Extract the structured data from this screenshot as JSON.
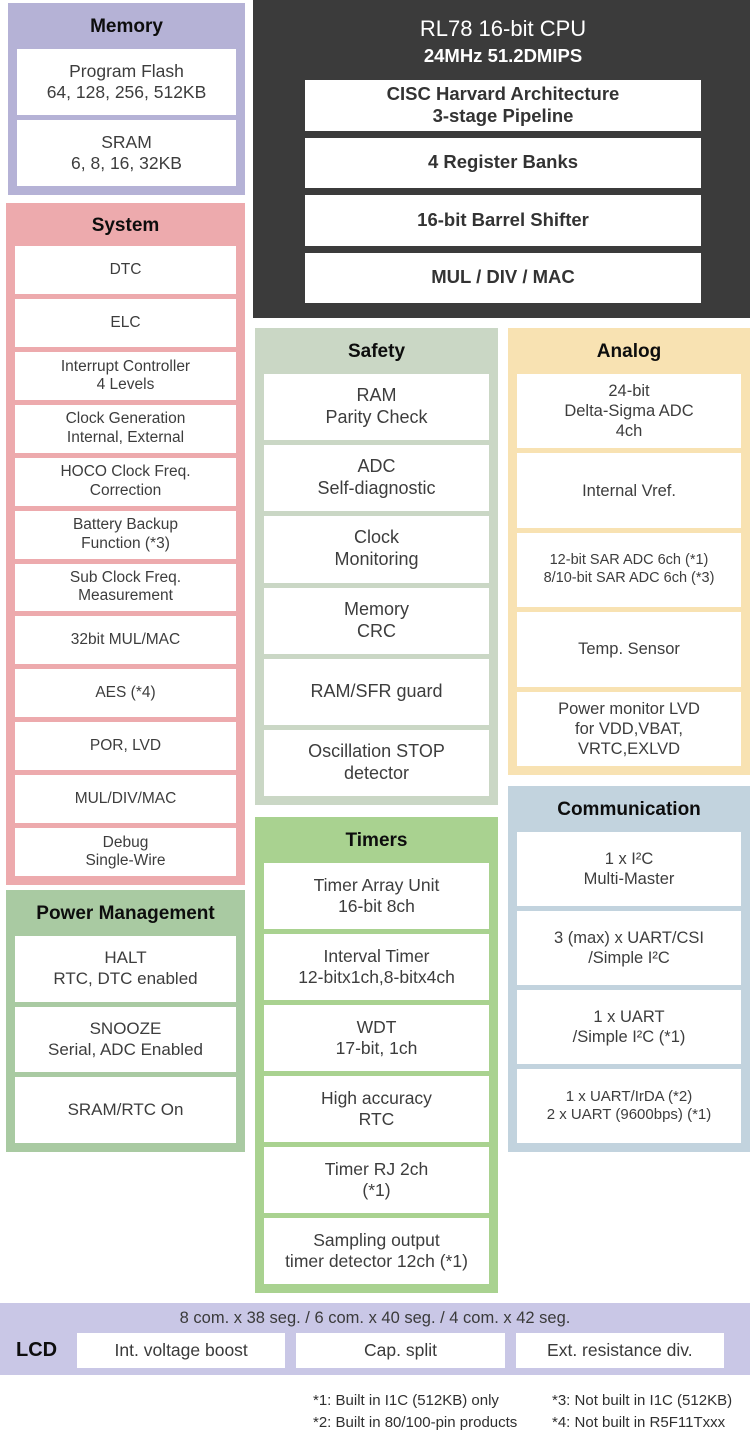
{
  "blocks": {
    "memory": {
      "title": "Memory",
      "items": [
        [
          "Program Flash",
          "64, 128, 256, 512KB"
        ],
        [
          "SRAM",
          "6, 8, 16, 32KB"
        ]
      ]
    },
    "cpu": {
      "title": "RL78 16-bit CPU",
      "subtitle": "24MHz 51.2DMIPS",
      "items": [
        [
          "CISC Harvard Architecture",
          "3-stage Pipeline"
        ],
        [
          "4 Register Banks"
        ],
        [
          "16-bit Barrel Shifter"
        ],
        [
          "MUL / DIV / MAC"
        ]
      ]
    },
    "system": {
      "title": "System",
      "items": [
        [
          "DTC"
        ],
        [
          "ELC"
        ],
        [
          "Interrupt Controller",
          "4 Levels"
        ],
        [
          "Clock Generation",
          "Internal, External"
        ],
        [
          "HOCO Clock Freq.",
          "Correction"
        ],
        [
          "Battery Backup",
          "Function (*3)"
        ],
        [
          "Sub Clock Freq.",
          "Measurement"
        ],
        [
          "32bit MUL/MAC"
        ],
        [
          "AES (*4)"
        ],
        [
          "POR, LVD"
        ],
        [
          "MUL/DIV/MAC"
        ],
        [
          "Debug",
          "Single-Wire"
        ]
      ]
    },
    "power": {
      "title": "Power Management",
      "items": [
        [
          "HALT",
          "RTC, DTC enabled"
        ],
        [
          "SNOOZE",
          "Serial, ADC Enabled"
        ],
        [
          "SRAM/RTC On"
        ]
      ]
    },
    "safety": {
      "title": "Safety",
      "items": [
        [
          "RAM",
          "Parity Check"
        ],
        [
          "ADC",
          "Self-diagnostic"
        ],
        [
          "Clock",
          "Monitoring"
        ],
        [
          "Memory",
          "CRC"
        ],
        [
          "RAM/SFR guard"
        ],
        [
          "Oscillation STOP",
          "detector"
        ]
      ]
    },
    "timers": {
      "title": "Timers",
      "items": [
        [
          "Timer Array Unit",
          "16-bit 8ch"
        ],
        [
          "Interval Timer",
          "12-bitx1ch,8-bitx4ch"
        ],
        [
          "WDT",
          "17-bit, 1ch"
        ],
        [
          "High accuracy",
          "RTC"
        ],
        [
          "Timer RJ 2ch",
          "(*1)"
        ],
        [
          "Sampling output",
          "timer detector 12ch (*1)"
        ]
      ]
    },
    "analog": {
      "title": "Analog",
      "items": [
        [
          "24-bit",
          "Delta-Sigma ADC",
          "4ch"
        ],
        [
          "Internal Vref."
        ],
        {
          "lines": [
            "12-bit SAR ADC 6ch (*1)",
            "8/10-bit SAR ADC 6ch (*3)"
          ],
          "cls": "small"
        },
        [
          "Temp. Sensor"
        ],
        [
          "Power monitor LVD",
          "for VDD,VBAT,",
          "VRTC,EXLVD"
        ]
      ]
    },
    "comm": {
      "title": "Communication",
      "items": [
        [
          "1 x I²C",
          "Multi-Master"
        ],
        [
          "3 (max) x UART/CSI",
          "/Simple I²C"
        ],
        [
          "1 x UART",
          "/Simple I²C (*1)"
        ],
        {
          "lines": [
            "1 x UART/IrDA (*2)",
            "2 x UART (9600bps) (*1)"
          ],
          "cls": "small"
        }
      ]
    }
  },
  "lcd": {
    "header": "8 com. x 38 seg. / 6 com. x 40 seg. / 4 com. x 42 seg.",
    "label": "LCD",
    "boxes": [
      "Int. voltage boost",
      "Cap. split",
      "Ext. resistance div."
    ]
  },
  "footnotes": [
    "*1: Built in I1C (512KB) only",
    "*2: Built in 80/100-pin products",
    "*3: Not built in I1C (512KB)",
    "*4: Not built in R5F11Txxx"
  ],
  "colors": {
    "memory": "#b5b2d6",
    "system": "#edaaad",
    "safety": "#cad7c5",
    "timers": "#a9d290",
    "power": "#a9caa2",
    "analog": "#f8e2b2",
    "communication": "#c2d3de",
    "cpu": "#3b3b3b",
    "lcd_strip": "#c9c7e6",
    "item_background": "#ffffff"
  }
}
